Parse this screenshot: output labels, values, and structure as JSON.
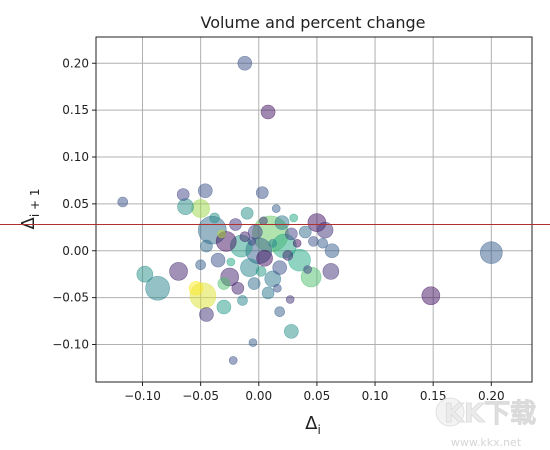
{
  "chart_data": {
    "type": "scatter",
    "title": "Volume and percent change",
    "xlabel_base": "Δ",
    "xlabel_sub": "i",
    "ylabel_base": "Δ",
    "ylabel_sub": "i + 1",
    "xlim": [
      -0.14,
      0.235
    ],
    "ylim": [
      -0.14,
      0.228
    ],
    "xticks": [
      -0.1,
      -0.05,
      0.0,
      0.05,
      0.1,
      0.15,
      0.2
    ],
    "xtick_labels": [
      "−0.10",
      "−0.05",
      "0.00",
      "0.05",
      "0.10",
      "0.15",
      "0.20"
    ],
    "yticks": [
      -0.1,
      -0.05,
      0.0,
      0.05,
      0.1,
      0.15,
      0.2
    ],
    "ytick_labels": [
      "−0.10",
      "−0.05",
      "0.00",
      "0.05",
      "0.10",
      "0.15",
      "0.20"
    ],
    "grid": true,
    "colormap": [
      "#440154",
      "#414487",
      "#2a788e",
      "#22a884",
      "#7ad151",
      "#fde725"
    ],
    "reference_line_y": 0.028,
    "reference_line_color": "#b03030",
    "points": [
      {
        "x": -0.012,
        "y": 0.2,
        "s": 7,
        "c": 0.25
      },
      {
        "x": 0.008,
        "y": 0.148,
        "s": 7,
        "c": 0.05
      },
      {
        "x": -0.117,
        "y": 0.052,
        "s": 5,
        "c": 0.25
      },
      {
        "x": -0.065,
        "y": 0.06,
        "s": 6,
        "c": 0.2
      },
      {
        "x": -0.046,
        "y": 0.064,
        "s": 7,
        "c": 0.25
      },
      {
        "x": -0.063,
        "y": 0.047,
        "s": 8,
        "c": 0.5
      },
      {
        "x": -0.05,
        "y": 0.045,
        "s": 9,
        "c": 0.85
      },
      {
        "x": 0.003,
        "y": 0.062,
        "s": 6,
        "c": 0.25
      },
      {
        "x": 0.05,
        "y": 0.03,
        "s": 9,
        "c": 0.05
      },
      {
        "x": 0.057,
        "y": 0.022,
        "s": 8,
        "c": 0.15
      },
      {
        "x": 0.2,
        "y": -0.002,
        "s": 11,
        "c": 0.3
      },
      {
        "x": 0.148,
        "y": -0.048,
        "s": 9,
        "c": 0.05
      },
      {
        "x": -0.098,
        "y": -0.025,
        "s": 8,
        "c": 0.5
      },
      {
        "x": -0.087,
        "y": -0.04,
        "s": 12,
        "c": 0.45
      },
      {
        "x": -0.069,
        "y": -0.022,
        "s": 9,
        "c": 0.1
      },
      {
        "x": -0.048,
        "y": -0.048,
        "s": 13,
        "c": 0.95
      },
      {
        "x": -0.054,
        "y": -0.04,
        "s": 7,
        "c": 1.0
      },
      {
        "x": -0.045,
        "y": -0.068,
        "s": 7,
        "c": 0.15
      },
      {
        "x": -0.03,
        "y": -0.06,
        "s": 7,
        "c": 0.55
      },
      {
        "x": -0.014,
        "y": -0.053,
        "s": 5,
        "c": 0.45
      },
      {
        "x": -0.022,
        "y": -0.117,
        "s": 4,
        "c": 0.25
      },
      {
        "x": -0.005,
        "y": -0.098,
        "s": 4,
        "c": 0.3
      },
      {
        "x": 0.028,
        "y": -0.086,
        "s": 7,
        "c": 0.5
      },
      {
        "x": 0.018,
        "y": -0.065,
        "s": 5,
        "c": 0.3
      },
      {
        "x": 0.027,
        "y": -0.052,
        "s": 4,
        "c": 0.15
      },
      {
        "x": 0.062,
        "y": -0.022,
        "s": 8,
        "c": 0.15
      },
      {
        "x": 0.063,
        "y": 0.0,
        "s": 7,
        "c": 0.3
      },
      {
        "x": 0.045,
        "y": -0.028,
        "s": 10,
        "c": 0.7
      },
      {
        "x": 0.047,
        "y": 0.01,
        "s": 5,
        "c": 0.25
      },
      {
        "x": 0.055,
        "y": 0.008,
        "s": 5,
        "c": 0.3
      },
      {
        "x": -0.04,
        "y": 0.022,
        "s": 14,
        "c": 0.35
      },
      {
        "x": -0.028,
        "y": 0.01,
        "s": 10,
        "c": 0.05
      },
      {
        "x": -0.015,
        "y": 0.005,
        "s": 11,
        "c": 0.55
      },
      {
        "x": 0.01,
        "y": 0.018,
        "s": 18,
        "c": 0.75
      },
      {
        "x": 0.0,
        "y": 0.0,
        "s": 13,
        "c": 0.3
      },
      {
        "x": 0.022,
        "y": 0.005,
        "s": 12,
        "c": 0.6
      },
      {
        "x": 0.035,
        "y": -0.01,
        "s": 11,
        "c": 0.6
      },
      {
        "x": -0.008,
        "y": -0.018,
        "s": 9,
        "c": 0.45
      },
      {
        "x": -0.025,
        "y": -0.028,
        "s": 9,
        "c": 0.1
      },
      {
        "x": 0.012,
        "y": -0.03,
        "s": 8,
        "c": 0.4
      },
      {
        "x": -0.035,
        "y": -0.01,
        "s": 7,
        "c": 0.25
      },
      {
        "x": -0.01,
        "y": 0.04,
        "s": 6,
        "c": 0.5
      },
      {
        "x": 0.02,
        "y": 0.03,
        "s": 7,
        "c": 0.4
      },
      {
        "x": 0.028,
        "y": 0.018,
        "s": 6,
        "c": 0.2
      },
      {
        "x": -0.02,
        "y": 0.028,
        "s": 6,
        "c": 0.15
      },
      {
        "x": -0.003,
        "y": 0.02,
        "s": 7,
        "c": 0.2
      },
      {
        "x": 0.005,
        "y": -0.008,
        "s": 8,
        "c": 0.05
      },
      {
        "x": 0.018,
        "y": -0.018,
        "s": 7,
        "c": 0.25
      },
      {
        "x": -0.018,
        "y": -0.04,
        "s": 6,
        "c": 0.1
      },
      {
        "x": -0.004,
        "y": -0.035,
        "s": 6,
        "c": 0.35
      },
      {
        "x": 0.008,
        "y": -0.045,
        "s": 6,
        "c": 0.4
      },
      {
        "x": -0.03,
        "y": -0.035,
        "s": 6,
        "c": 0.7
      },
      {
        "x": 0.04,
        "y": 0.02,
        "s": 6,
        "c": 0.35
      },
      {
        "x": 0.03,
        "y": 0.035,
        "s": 4,
        "c": 0.6
      },
      {
        "x": -0.045,
        "y": 0.005,
        "s": 6,
        "c": 0.35
      },
      {
        "x": -0.05,
        "y": -0.015,
        "s": 5,
        "c": 0.3
      },
      {
        "x": 0.015,
        "y": 0.045,
        "s": 4,
        "c": 0.3
      },
      {
        "x": -0.012,
        "y": 0.015,
        "s": 5,
        "c": 0.1
      },
      {
        "x": 0.002,
        "y": -0.022,
        "s": 5,
        "c": 0.55
      },
      {
        "x": 0.025,
        "y": -0.005,
        "s": 5,
        "c": 0.1
      },
      {
        "x": -0.038,
        "y": 0.035,
        "s": 5,
        "c": 0.5
      },
      {
        "x": -0.006,
        "y": 0.01,
        "s": 4,
        "c": 0.2
      },
      {
        "x": 0.012,
        "y": 0.008,
        "s": 4,
        "c": 0.45
      },
      {
        "x": 0.033,
        "y": 0.008,
        "s": 4,
        "c": 0.05
      },
      {
        "x": -0.024,
        "y": -0.012,
        "s": 4,
        "c": 0.6
      },
      {
        "x": 0.004,
        "y": 0.032,
        "s": 4,
        "c": 0.15
      },
      {
        "x": -0.032,
        "y": 0.018,
        "s": 4,
        "c": 0.9
      },
      {
        "x": 0.042,
        "y": -0.02,
        "s": 4,
        "c": 0.2
      },
      {
        "x": 0.016,
        "y": -0.04,
        "s": 4,
        "c": 0.25
      }
    ]
  },
  "watermark": {
    "logo_text": "KK下载",
    "url_text": "www.kkx.net"
  }
}
